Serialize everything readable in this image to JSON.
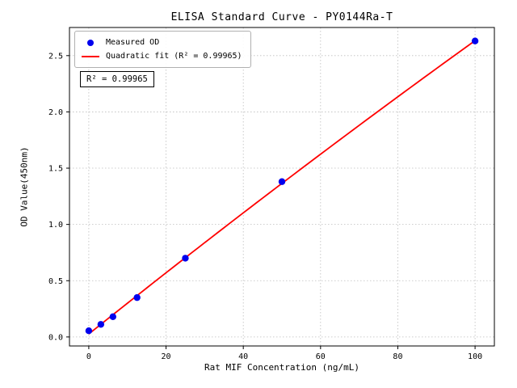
{
  "chart_data": {
    "type": "scatter",
    "title": "ELISA Standard Curve - PY0144Ra-T",
    "xlabel": "Rat MIF Concentration (ng/mL)",
    "ylabel": "OD Value(450nm)",
    "x": [
      0,
      3.125,
      6.25,
      12.5,
      25,
      50,
      100
    ],
    "y": [
      0.055,
      0.112,
      0.18,
      0.35,
      0.7,
      1.38,
      2.63
    ],
    "fit_type": "quadratic",
    "r_squared": 0.99965,
    "xlim": [
      -5,
      105
    ],
    "ylim": [
      -0.08,
      2.75
    ],
    "xticks": [
      0,
      20,
      40,
      60,
      80,
      100
    ],
    "xtick_labels": [
      "0",
      "20",
      "40",
      "60",
      "80",
      "100"
    ],
    "yticks": [
      0.0,
      0.5,
      1.0,
      1.5,
      2.0,
      2.5
    ],
    "ytick_labels": [
      "0.0",
      "0.5",
      "1.0",
      "1.5",
      "2.0",
      "2.5"
    ],
    "grid": true,
    "legend": {
      "position": "upper left",
      "entries": [
        {
          "label": "Measured OD",
          "marker": "dot",
          "color": "#0000ee"
        },
        {
          "label": "Quadratic fit (R² = 0.99965)",
          "marker": "line",
          "color": "#ff0000"
        }
      ]
    },
    "annotation": "R² = 0.99965",
    "colors": {
      "points": "#0000ee",
      "fit": "#ff0000",
      "grid": "#bdbdbd",
      "spine": "#000000"
    }
  }
}
